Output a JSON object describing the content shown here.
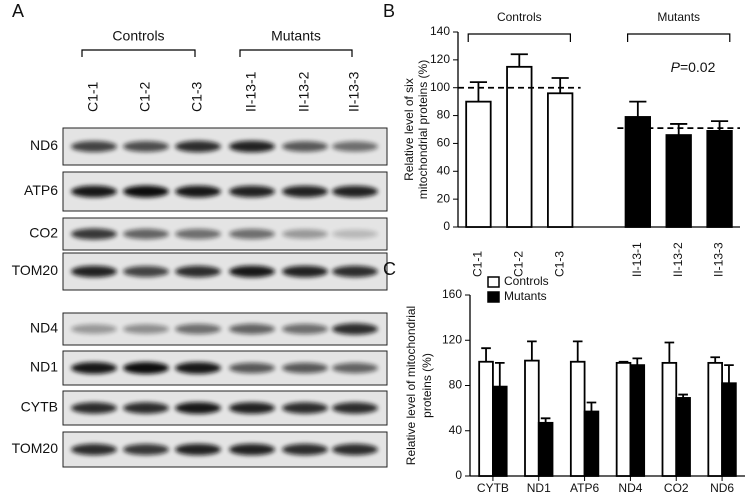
{
  "blot": {
    "panel": "A",
    "groups": [
      {
        "label": "Controls",
        "lanes": [
          "C1-1",
          "C1-2",
          "C1-3"
        ]
      },
      {
        "label": "Mutants",
        "lanes": [
          "II-13-1",
          "II-13-2",
          "II-13-3"
        ]
      }
    ],
    "rows": [
      "ND6",
      "ATP6",
      "CO2",
      "TOM20",
      "ND4",
      "ND1",
      "CYTB",
      "TOM20"
    ]
  },
  "chart_data": [
    {
      "panel": "B",
      "type": "bar",
      "y_label": [
        "Relative level of six",
        "mitochondrial proteins (%)"
      ],
      "categories": [
        "C1-1",
        "C1-2",
        "C1-3",
        "II-13-1",
        "II-13-2",
        "II-13-3"
      ],
      "series": [
        {
          "name": "Controls",
          "color": "#ffffff",
          "values": [
            90,
            115,
            96,
            null,
            null,
            null
          ],
          "errors": [
            14,
            9,
            11,
            null,
            null,
            null
          ],
          "mean_line": 100
        },
        {
          "name": "Mutants",
          "color": "#000000",
          "values": [
            null,
            null,
            null,
            79,
            66,
            69
          ],
          "errors": [
            null,
            null,
            null,
            11,
            8,
            7
          ],
          "mean_line": 71
        }
      ],
      "annotation": "P=0.02",
      "ylim": [
        0,
        140
      ],
      "yticks": [
        0,
        20,
        40,
        60,
        80,
        100,
        120,
        140
      ],
      "legend": false
    },
    {
      "panel": "C",
      "type": "bar",
      "y_label": [
        "Relative level of mitochondrial",
        "proteins (%)"
      ],
      "categories": [
        "CYTB",
        "ND1",
        "ATP6",
        "ND4",
        "CO2",
        "ND6"
      ],
      "series": [
        {
          "name": "Controls",
          "color": "#ffffff",
          "values": [
            101,
            102,
            101,
            100,
            100,
            100
          ],
          "errors": [
            12,
            17,
            18,
            1,
            18,
            5
          ]
        },
        {
          "name": "Mutants",
          "color": "#000000",
          "values": [
            79,
            47,
            57,
            98,
            69,
            82
          ],
          "errors": [
            21,
            4,
            8,
            6,
            3,
            16
          ]
        }
      ],
      "ylim": [
        0,
        160
      ],
      "yticks": [
        0,
        40,
        80,
        120,
        160
      ],
      "legend": "upper left"
    }
  ]
}
